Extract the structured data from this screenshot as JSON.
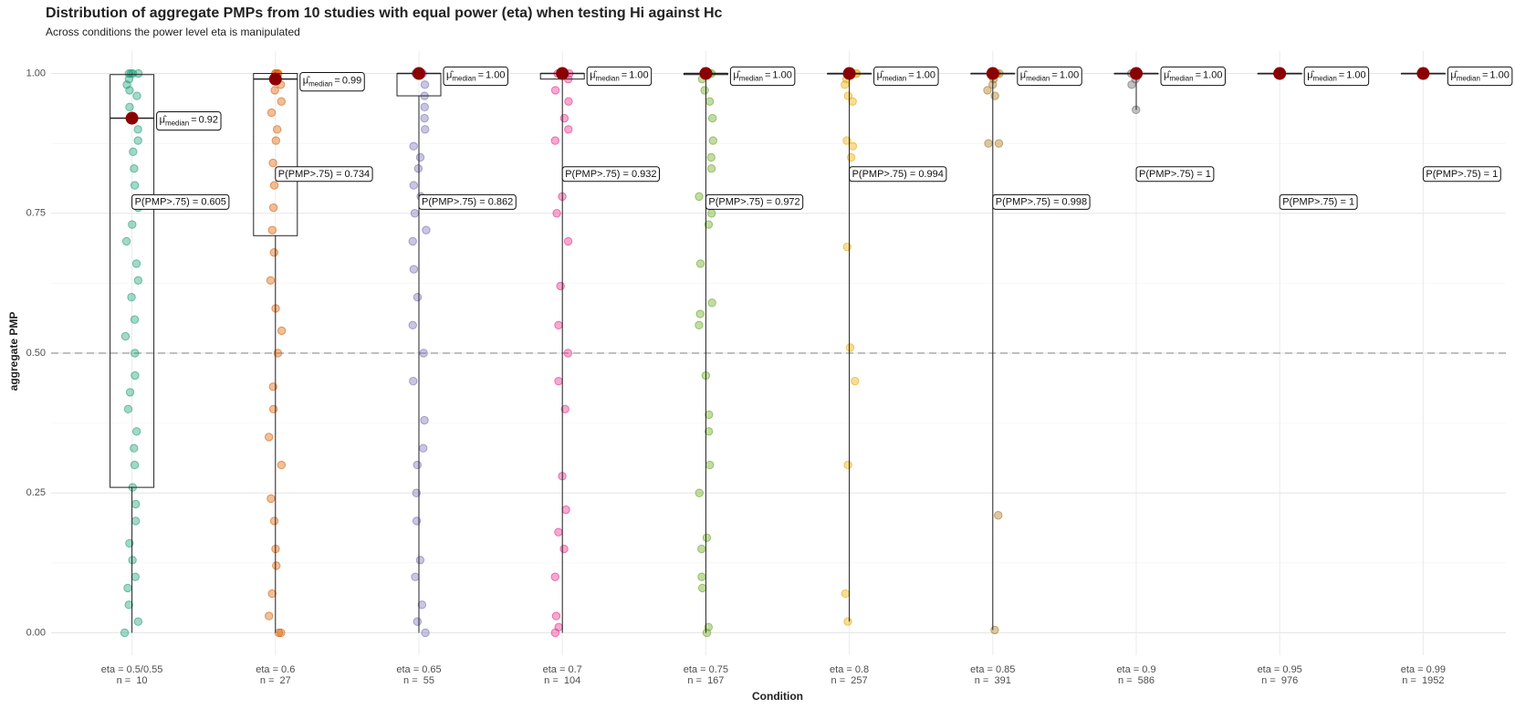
{
  "chart_data": {
    "type": "jitter_box",
    "title": "Distribution of aggregate PMPs from 10 studies with equal power (eta) when testing Hi against Hc",
    "subtitle": "Across conditions the power level eta is manipulated",
    "x_label": "Condition",
    "y_label": "aggregate PMP",
    "ylim": [
      -0.04,
      1.04
    ],
    "yticks": [
      {
        "value": 0,
        "label": "0.00"
      },
      {
        "value": 0.25,
        "label": "0.25"
      },
      {
        "value": 0.5,
        "label": "0.50"
      },
      {
        "value": 0.75,
        "label": "0.75"
      },
      {
        "value": 1,
        "label": "1.00"
      }
    ],
    "ygrid_minor": [
      0.125,
      0.375,
      0.625,
      0.875
    ],
    "hline": 0.5,
    "grid": true,
    "categories": [
      "eta = 0.5/0.55",
      "eta = 0.6",
      "eta = 0.65",
      "eta = 0.7",
      "eta = 0.75",
      "eta = 0.8",
      "eta = 0.85",
      "eta = 0.9",
      "eta = 0.95",
      "eta = 0.99"
    ],
    "n": [
      10,
      27,
      55,
      104,
      167,
      257,
      391,
      586,
      976,
      1952
    ],
    "n_labels": [
      "n =  10",
      "n =  27",
      "n =  55",
      "n =  104",
      "n =  167",
      "n =  257",
      "n =  391",
      "n =  586",
      "n =  976",
      "n =  1952"
    ],
    "median_symbol": "μ̂",
    "median_subscript": "median",
    "median_equals": "=",
    "series": [
      {
        "color": "#1b9e77",
        "values": [
          0,
          0.02,
          0.05,
          0.08,
          0.1,
          0.13,
          0.16,
          0.2,
          0.23,
          0.26,
          0.3,
          0.33,
          0.36,
          0.4,
          0.43,
          0.46,
          0.5,
          0.53,
          0.56,
          0.6,
          0.63,
          0.66,
          0.7,
          0.73,
          0.76,
          0.8,
          0.83,
          0.86,
          0.88,
          0.9,
          0.92,
          0.94,
          0.96,
          0.97,
          0.98,
          0.99,
          1,
          1,
          1,
          1
        ]
      },
      {
        "color": "#d95f02",
        "values": [
          0,
          0,
          0.03,
          0.07,
          0.12,
          0.15,
          0.2,
          0.24,
          0.3,
          0.35,
          0.4,
          0.44,
          0.5,
          0.54,
          0.58,
          0.63,
          0.68,
          0.72,
          0.76,
          0.8,
          0.84,
          0.88,
          0.9,
          0.93,
          0.95,
          0.97,
          0.98,
          0.99,
          1,
          1,
          1,
          1
        ]
      },
      {
        "color": "#7570b3",
        "values": [
          0,
          0.02,
          0.05,
          0.1,
          0.13,
          0.2,
          0.25,
          0.3,
          0.33,
          0.38,
          0.45,
          0.5,
          0.55,
          0.6,
          0.65,
          0.7,
          0.72,
          0.75,
          0.78,
          0.8,
          0.83,
          0.85,
          0.87,
          0.9,
          0.92,
          0.94,
          0.96,
          0.98,
          1,
          1
        ]
      },
      {
        "color": "#e7298a",
        "values": [
          0,
          0.01,
          0.03,
          0.1,
          0.15,
          0.18,
          0.22,
          0.28,
          0.4,
          0.45,
          0.5,
          0.55,
          0.62,
          0.7,
          0.75,
          0.78,
          0.88,
          0.9,
          0.92,
          0.95,
          0.97,
          0.99,
          1,
          1
        ]
      },
      {
        "color": "#66a61e",
        "values": [
          0,
          0.01,
          0.08,
          0.1,
          0.15,
          0.17,
          0.25,
          0.3,
          0.36,
          0.39,
          0.46,
          0.55,
          0.57,
          0.59,
          0.66,
          0.73,
          0.75,
          0.78,
          0.83,
          0.85,
          0.88,
          0.92,
          0.95,
          0.97,
          0.99,
          1,
          1
        ]
      },
      {
        "color": "#e6ab02",
        "values": [
          0.02,
          0.07,
          0.3,
          0.45,
          0.51,
          0.69,
          0.85,
          0.87,
          0.88,
          0.95,
          0.96,
          0.98,
          0.99,
          1,
          1
        ]
      },
      {
        "color": "#a6761d",
        "values": [
          0.005,
          0.21,
          0.875,
          0.875,
          0.96,
          0.97,
          0.98,
          0.99,
          1,
          1
        ]
      },
      {
        "color": "#666666",
        "values": [
          0.935,
          0.98,
          0.99,
          1,
          1
        ]
      },
      {
        "color": "#1b9e77",
        "values": [
          1,
          1
        ]
      },
      {
        "color": "#d95f02",
        "values": [
          1
        ]
      }
    ],
    "box_lower": [
      0,
      0,
      0,
      0,
      0,
      0.02,
      0.005,
      0.935,
      1,
      1
    ],
    "box_q1": [
      0.26,
      0.71,
      0.96,
      0.99,
      0.998,
      0.999,
      1,
      1,
      1,
      1
    ],
    "medians": [
      0.92,
      0.99,
      1.0,
      1.0,
      1.0,
      1.0,
      1.0,
      1.0,
      1.0,
      1.0
    ],
    "median_labels": [
      "0.92",
      "0.99",
      "1.00",
      "1.00",
      "1.00",
      "1.00",
      "1.00",
      "1.00",
      "1.00",
      "1.00"
    ],
    "box_q3": [
      0.998,
      1,
      1,
      1,
      1,
      1,
      1,
      1,
      1,
      1
    ],
    "box_upper": [
      1,
      1,
      1,
      1,
      1,
      1,
      1,
      1,
      1,
      1
    ],
    "p_values": [
      0.605,
      0.734,
      0.862,
      0.932,
      0.972,
      0.994,
      0.998,
      1,
      1,
      1
    ],
    "p_value_labels": [
      "P(PMP>.75) = 0.605",
      "P(PMP>.75) = 0.734",
      "P(PMP>.75) = 0.862",
      "P(PMP>.75) = 0.932",
      "P(PMP>.75) = 0.972",
      "P(PMP>.75) = 0.994",
      "P(PMP>.75) = 0.998",
      "P(PMP>.75) = 1",
      "P(PMP>.75) = 1",
      "P(PMP>.75) = 1"
    ],
    "median_color": "#8b0000"
  }
}
